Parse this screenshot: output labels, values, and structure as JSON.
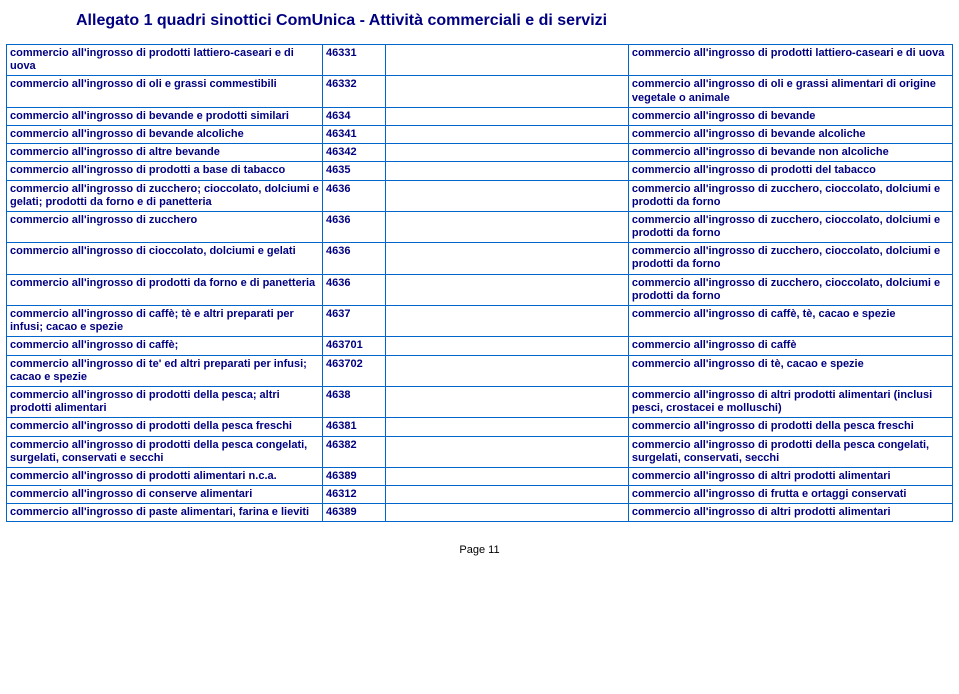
{
  "title": "Allegato 1 quadri sinottici ComUnica - Attività commerciali e di servizi",
  "footer": "Page 11",
  "colors": {
    "text": "#000080",
    "border": "#0066cc",
    "background": "#ffffff"
  },
  "rows": [
    {
      "left": "commercio all'ingrosso di prodotti lattiero-caseari e di uova",
      "code": "46331",
      "right": "commercio all'ingrosso di prodotti lattiero-caseari e di uova"
    },
    {
      "left": "commercio all'ingrosso di oli e grassi commestibili",
      "code": "46332",
      "right": "commercio all'ingrosso di oli e grassi alimentari di origine vegetale o animale"
    },
    {
      "left": "commercio all'ingrosso di bevande e prodotti similari",
      "code": "4634",
      "right": "commercio all'ingrosso di bevande"
    },
    {
      "left": "commercio all'ingrosso di bevande alcoliche",
      "code": "46341",
      "right": "commercio all'ingrosso di bevande alcoliche"
    },
    {
      "left": "commercio all'ingrosso di altre bevande",
      "code": "46342",
      "right": "commercio all'ingrosso di bevande non alcoliche"
    },
    {
      "left": "commercio all'ingrosso di prodotti a base di tabacco",
      "code": "4635",
      "right": "commercio all'ingrosso di prodotti del tabacco"
    },
    {
      "left": "commercio all'ingrosso di zucchero; cioccolato, dolciumi e gelati; prodotti da forno e di panetteria",
      "code": "4636",
      "right": "commercio all'ingrosso di zucchero, cioccolato, dolciumi e prodotti da forno"
    },
    {
      "left": "commercio all'ingrosso di zucchero",
      "code": "4636",
      "right": "commercio all'ingrosso di zucchero, cioccolato, dolciumi e prodotti da forno"
    },
    {
      "left": "commercio all'ingrosso di cioccolato, dolciumi e gelati",
      "code": "4636",
      "right": "commercio all'ingrosso di zucchero, cioccolato, dolciumi e prodotti da forno"
    },
    {
      "left": "commercio all'ingrosso di prodotti da forno e di panetteria",
      "code": "4636",
      "right": "commercio all'ingrosso di zucchero, cioccolato, dolciumi e prodotti da forno"
    },
    {
      "left": "commercio all'ingrosso di caffè; tè e altri preparati per infusi; cacao e spezie",
      "code": "4637",
      "right": "commercio all'ingrosso di caffè, tè, cacao e spezie"
    },
    {
      "left": "commercio all'ingrosso di caffè;",
      "code": "463701",
      "right": "commercio all'ingrosso di caffè"
    },
    {
      "left": "commercio all'ingrosso di te' ed altri preparati per infusi; cacao e spezie",
      "code": "463702",
      "right": "commercio all'ingrosso di tè, cacao e spezie"
    },
    {
      "left": "commercio all'ingrosso di prodotti della pesca; altri prodotti alimentari",
      "code": "4638",
      "right": "commercio all'ingrosso di altri prodotti alimentari (inclusi pesci, crostacei e molluschi)"
    },
    {
      "left": "commercio all'ingrosso di prodotti della pesca freschi",
      "code": "46381",
      "right": "commercio all'ingrosso di prodotti della pesca freschi"
    },
    {
      "left": "commercio all'ingrosso di prodotti della pesca congelati, surgelati, conservati e secchi",
      "code": "46382",
      "right": "commercio all'ingrosso di prodotti della pesca congelati, surgelati, conservati, secchi"
    },
    {
      "left": "commercio all'ingrosso di prodotti alimentari n.c.a.",
      "code": "46389",
      "right": "commercio all'ingrosso di altri prodotti alimentari"
    },
    {
      "left": "commercio all'ingrosso di conserve alimentari",
      "code": "46312",
      "right": "commercio all'ingrosso di frutta e ortaggi conservati"
    },
    {
      "left": "commercio all'ingrosso di paste alimentari, farina e lieviti",
      "code": "46389",
      "right": "commercio all'ingrosso di altri prodotti alimentari"
    }
  ]
}
